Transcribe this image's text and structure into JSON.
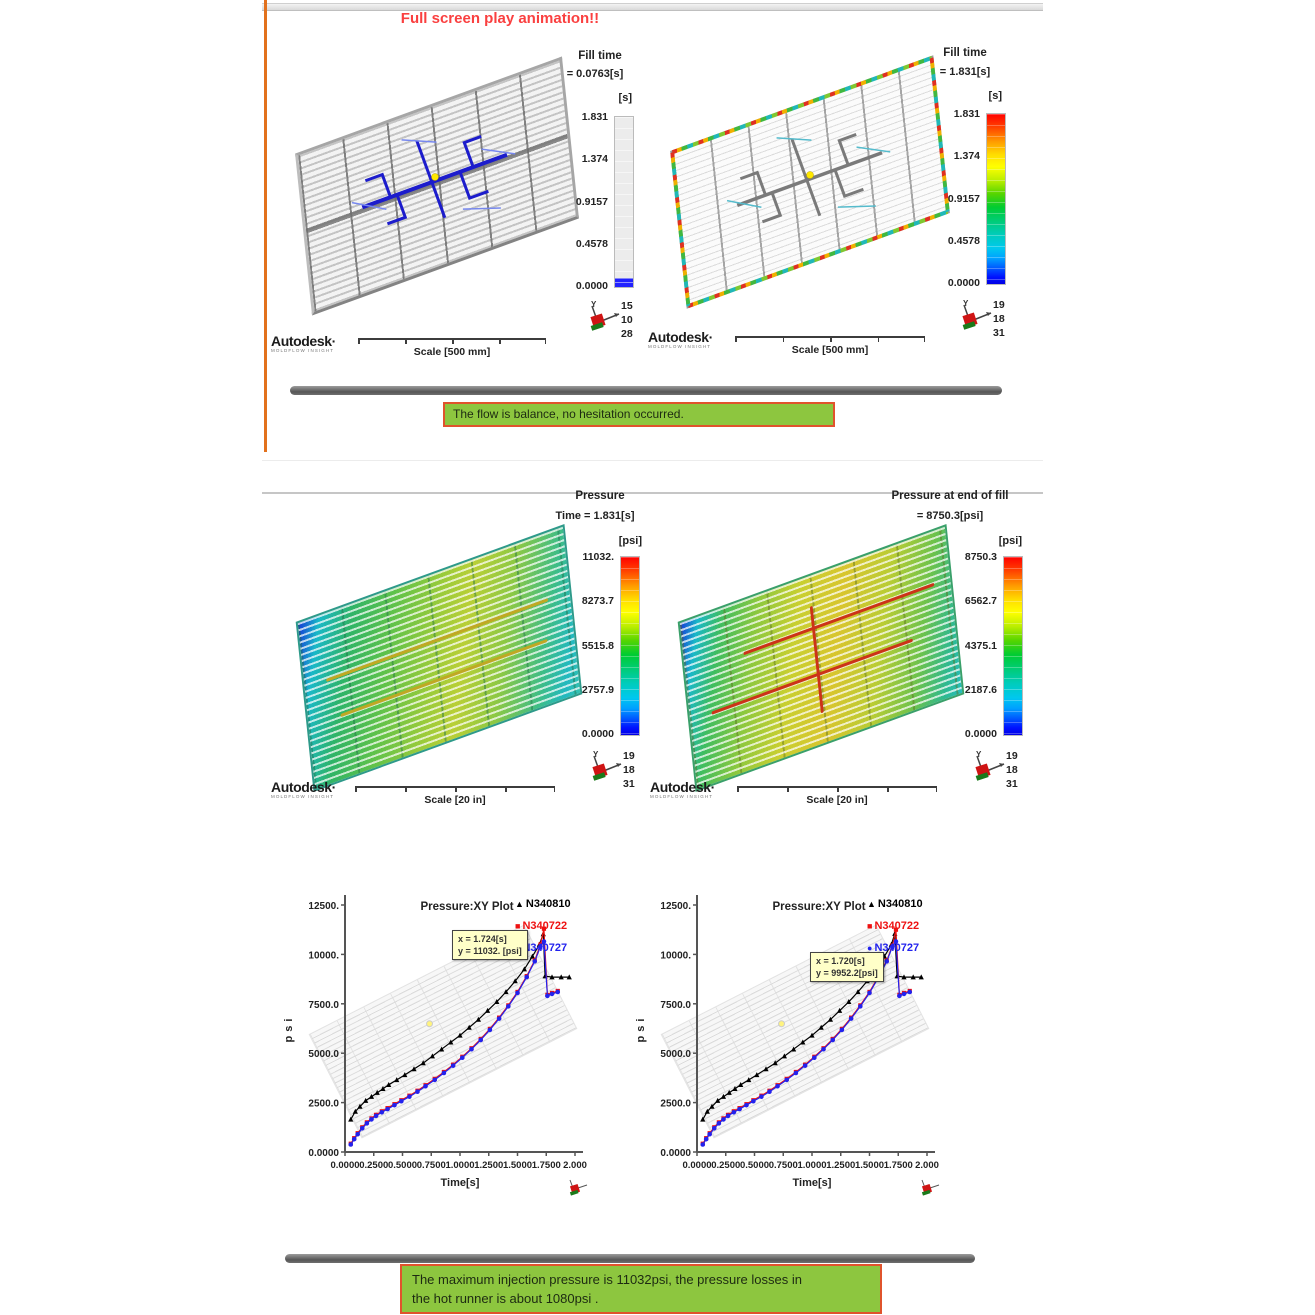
{
  "banners": {
    "title": "Full screen play animation!!",
    "flow_note": "The flow is balance, no hesitation occurred.",
    "pressure_note_line1": "The maximum injection pressure is 11032psi, the pressure losses in",
    "pressure_note_line2": "the hot runner is about 1080psi ."
  },
  "brand": {
    "name": "Autodesk·",
    "sub": "MOLDFLOW INSIGHT"
  },
  "colors": {
    "title_red": "#fa4040",
    "banner_green": "#8dc63f",
    "banner_border": "#e0532c",
    "series_black": "#000000",
    "series_red": "#ee1111",
    "series_blue": "#2222ee"
  },
  "mesh_plots": {
    "fill_left": {
      "legend_title": "Fill time",
      "legend_value": "= 0.0763[s]",
      "unit": "[s]",
      "color_ticks": [
        "1.831",
        "1.374",
        "0.9157",
        "0.4578",
        "0.0000"
      ],
      "scale_label": "Scale [500 mm]",
      "triad": [
        "15",
        "10",
        "28"
      ]
    },
    "fill_right": {
      "legend_title": "Fill time",
      "legend_value": "= 1.831[s]",
      "unit": "[s]",
      "color_ticks": [
        "1.831",
        "1.374",
        "0.9157",
        "0.4578",
        "0.0000"
      ],
      "scale_label": "Scale [500 mm]",
      "triad": [
        "19",
        "18",
        "31"
      ]
    },
    "pressure_left": {
      "legend_title": "Pressure",
      "legend_value": "Time = 1.831[s]",
      "unit": "[psi]",
      "color_ticks": [
        "11032.",
        "8273.7",
        "5515.8",
        "2757.9",
        "0.0000"
      ],
      "scale_label": "Scale [20 in]",
      "triad": [
        "19",
        "18",
        "31"
      ]
    },
    "pressure_right": {
      "legend_title": "Pressure at end of fill",
      "legend_value": "= 8750.3[psi]",
      "unit": "[psi]",
      "color_ticks": [
        "8750.3",
        "6562.7",
        "4375.1",
        "2187.6",
        "0.0000"
      ],
      "scale_label": "Scale [20 in]",
      "triad": [
        "19",
        "18",
        "31"
      ]
    }
  },
  "chart_data": [
    {
      "type": "line",
      "title": "Pressure:XY Plot",
      "xlabel": "Time[s]",
      "ylabel": "psi",
      "xlim": [
        0,
        2.0
      ],
      "ylim": [
        0,
        12500
      ],
      "grid": false,
      "legend_position": "top-right",
      "xticks": [
        "0.0000",
        "0.2500",
        "0.5000",
        "0.7500",
        "1.0000",
        "1.2500",
        "1.5000",
        "1.7500",
        "2.000"
      ],
      "yticks": [
        "0.0000",
        "2500.0",
        "5000.0",
        "7500.0",
        "10000.",
        "12500."
      ],
      "legend": [
        {
          "name": "N340810",
          "color": "#000000",
          "marker": "triangle"
        },
        {
          "name": "N340722",
          "color": "#ee1111",
          "marker": "square"
        },
        {
          "name": "N340727",
          "color": "#2222ee",
          "marker": "circle"
        }
      ],
      "annotation": {
        "line1": "x = 1.724[s]",
        "line2": "y = 11032. [psi]"
      },
      "series": [
        {
          "name": "N340810",
          "color": "#000000",
          "marker": "triangle",
          "x": [
            0.05,
            0.09,
            0.13,
            0.18,
            0.23,
            0.28,
            0.33,
            0.38,
            0.45,
            0.52,
            0.6,
            0.68,
            0.76,
            0.84,
            0.92,
            1.0,
            1.08,
            1.16,
            1.24,
            1.32,
            1.4,
            1.48,
            1.56,
            1.63,
            1.69,
            1.724,
            1.74,
            1.8,
            1.88,
            1.95
          ],
          "y": [
            1650,
            2050,
            2300,
            2600,
            2800,
            3000,
            3200,
            3400,
            3650,
            3900,
            4200,
            4500,
            4850,
            5200,
            5550,
            5900,
            6300,
            6700,
            7150,
            7600,
            8100,
            8650,
            9250,
            9900,
            10500,
            11032,
            8900,
            8850,
            8850,
            8850
          ]
        },
        {
          "name": "N340722",
          "color": "#ee1111",
          "marker": "square",
          "x": [
            0.05,
            0.08,
            0.11,
            0.15,
            0.19,
            0.23,
            0.27,
            0.32,
            0.37,
            0.43,
            0.49,
            0.56,
            0.63,
            0.7,
            0.78,
            0.86,
            0.94,
            1.02,
            1.1,
            1.18,
            1.26,
            1.34,
            1.42,
            1.5,
            1.58,
            1.65,
            1.7,
            1.73,
            1.76,
            1.8,
            1.85
          ],
          "y": [
            420,
            700,
            950,
            1250,
            1500,
            1700,
            1880,
            2060,
            2220,
            2420,
            2620,
            2850,
            3100,
            3380,
            3700,
            4050,
            4420,
            4820,
            5250,
            5720,
            6230,
            6800,
            7420,
            8100,
            8900,
            9700,
            10500,
            11300,
            7950,
            8050,
            8150
          ]
        },
        {
          "name": "N340727",
          "color": "#2222ee",
          "marker": "circle",
          "x": [
            0.05,
            0.08,
            0.11,
            0.15,
            0.19,
            0.23,
            0.27,
            0.32,
            0.37,
            0.43,
            0.49,
            0.56,
            0.63,
            0.7,
            0.78,
            0.86,
            0.94,
            1.02,
            1.1,
            1.18,
            1.26,
            1.34,
            1.42,
            1.5,
            1.58,
            1.65,
            1.7,
            1.73,
            1.76,
            1.8,
            1.85
          ],
          "y": [
            380,
            650,
            900,
            1200,
            1450,
            1650,
            1830,
            2010,
            2170,
            2370,
            2570,
            2800,
            3050,
            3330,
            3650,
            4000,
            4370,
            4770,
            5200,
            5670,
            6180,
            6750,
            7370,
            8050,
            8850,
            9650,
            10400,
            10650,
            7900,
            8000,
            8100
          ]
        }
      ]
    },
    {
      "type": "line",
      "title": "Pressure:XY Plot",
      "xlabel": "Time[s]",
      "ylabel": "psi",
      "xlim": [
        0,
        2.0
      ],
      "ylim": [
        0,
        12500
      ],
      "grid": false,
      "legend_position": "top-right",
      "xticks": [
        "0.0000",
        "0.2500",
        "0.5000",
        "0.7500",
        "1.0000",
        "1.2500",
        "1.5000",
        "1.7500",
        "2.000"
      ],
      "yticks": [
        "0.0000",
        "2500.0",
        "5000.0",
        "7500.0",
        "10000.",
        "12500."
      ],
      "legend": [
        {
          "name": "N340810",
          "color": "#000000",
          "marker": "triangle"
        },
        {
          "name": "N340722",
          "color": "#ee1111",
          "marker": "square"
        },
        {
          "name": "N340727",
          "color": "#2222ee",
          "marker": "circle"
        }
      ],
      "annotation": {
        "line1": "x = 1.720[s]",
        "line2": "y = 9952.2[psi]"
      },
      "series": [
        {
          "name": "N340810",
          "color": "#000000",
          "marker": "triangle",
          "x": [
            0.05,
            0.09,
            0.13,
            0.18,
            0.23,
            0.28,
            0.33,
            0.38,
            0.45,
            0.52,
            0.6,
            0.68,
            0.76,
            0.84,
            0.92,
            1.0,
            1.08,
            1.16,
            1.24,
            1.32,
            1.4,
            1.48,
            1.56,
            1.63,
            1.69,
            1.72,
            1.74,
            1.8,
            1.88,
            1.95
          ],
          "y": [
            1650,
            2050,
            2300,
            2600,
            2800,
            3000,
            3200,
            3400,
            3650,
            3900,
            4200,
            4500,
            4850,
            5200,
            5550,
            5900,
            6300,
            6700,
            7150,
            7600,
            8100,
            8650,
            9250,
            9900,
            10500,
            11050,
            8900,
            8850,
            8850,
            8850
          ]
        },
        {
          "name": "N340722",
          "color": "#ee1111",
          "marker": "square",
          "x": [
            0.05,
            0.08,
            0.11,
            0.15,
            0.19,
            0.23,
            0.27,
            0.32,
            0.37,
            0.43,
            0.49,
            0.56,
            0.63,
            0.7,
            0.78,
            0.86,
            0.94,
            1.02,
            1.1,
            1.18,
            1.26,
            1.34,
            1.42,
            1.5,
            1.58,
            1.65,
            1.7,
            1.73,
            1.76,
            1.8,
            1.85
          ],
          "y": [
            420,
            700,
            950,
            1250,
            1500,
            1700,
            1880,
            2060,
            2220,
            2420,
            2620,
            2850,
            3100,
            3380,
            3700,
            4050,
            4420,
            4820,
            5250,
            5720,
            6230,
            6800,
            7420,
            8100,
            8900,
            9700,
            10450,
            11250,
            7950,
            8050,
            8150
          ]
        },
        {
          "name": "N340727",
          "color": "#2222ee",
          "marker": "circle",
          "x": [
            0.05,
            0.08,
            0.11,
            0.15,
            0.19,
            0.23,
            0.27,
            0.32,
            0.37,
            0.43,
            0.49,
            0.56,
            0.63,
            0.7,
            0.78,
            0.86,
            0.94,
            1.02,
            1.1,
            1.18,
            1.26,
            1.34,
            1.42,
            1.5,
            1.58,
            1.65,
            1.7,
            1.73,
            1.76,
            1.8,
            1.85
          ],
          "y": [
            380,
            650,
            900,
            1200,
            1450,
            1650,
            1830,
            2010,
            2170,
            2370,
            2570,
            2800,
            3050,
            3330,
            3650,
            4000,
            4370,
            4770,
            5200,
            5670,
            6180,
            6750,
            7370,
            8050,
            8850,
            9650,
            10400,
            10650,
            7900,
            8000,
            8100
          ]
        }
      ]
    }
  ]
}
